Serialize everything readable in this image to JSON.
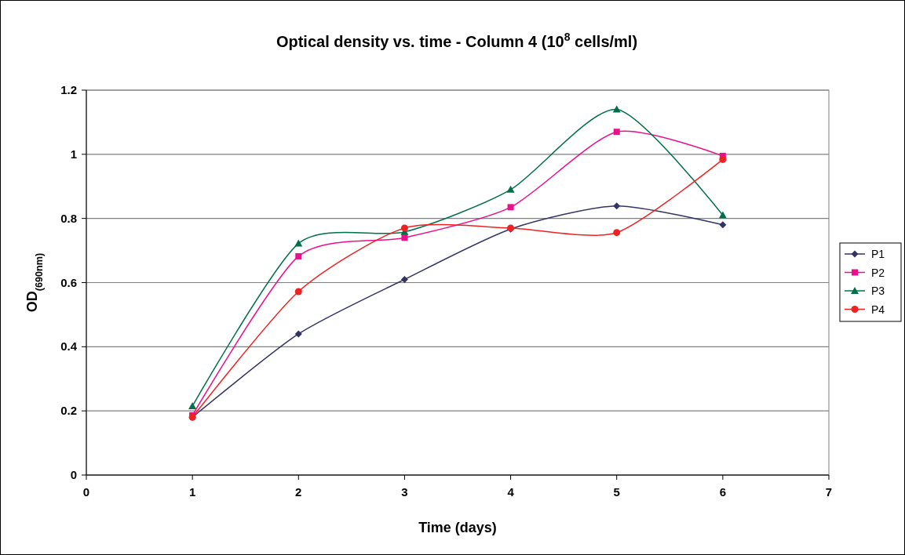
{
  "chart_data": {
    "type": "line",
    "title": "Optical density vs. time - Column 4 (10$^{8}$ cells/ml)",
    "xlabel": "Time (days)",
    "ylabel": "OD$_{(690nm)}$",
    "x": [
      1,
      2,
      3,
      4,
      5,
      6
    ],
    "series": [
      {
        "name": "P1",
        "color": "#333366",
        "marker": "diamond",
        "values": [
          0.18,
          0.44,
          0.61,
          0.767,
          0.839,
          0.78
        ]
      },
      {
        "name": "P2",
        "color": "#ec0f8c",
        "marker": "square",
        "values": [
          0.186,
          0.682,
          0.74,
          0.835,
          1.07,
          0.995
        ]
      },
      {
        "name": "P3",
        "color": "#00704a",
        "marker": "triangle",
        "values": [
          0.215,
          0.722,
          0.758,
          0.89,
          1.14,
          0.81
        ]
      },
      {
        "name": "P4",
        "color": "#ee2222",
        "marker": "circle",
        "values": [
          0.18,
          0.572,
          0.77,
          0.77,
          0.756,
          0.984
        ]
      }
    ],
    "xlim": [
      0,
      7
    ],
    "xticks": [
      0,
      1,
      2,
      3,
      4,
      5,
      6,
      7
    ],
    "ylim": [
      0,
      1.2
    ],
    "yticks": [
      0,
      0.2,
      0.4,
      0.6,
      0.8,
      1,
      1.2
    ],
    "grid": "y",
    "legend": "right",
    "line_style": "solid"
  }
}
